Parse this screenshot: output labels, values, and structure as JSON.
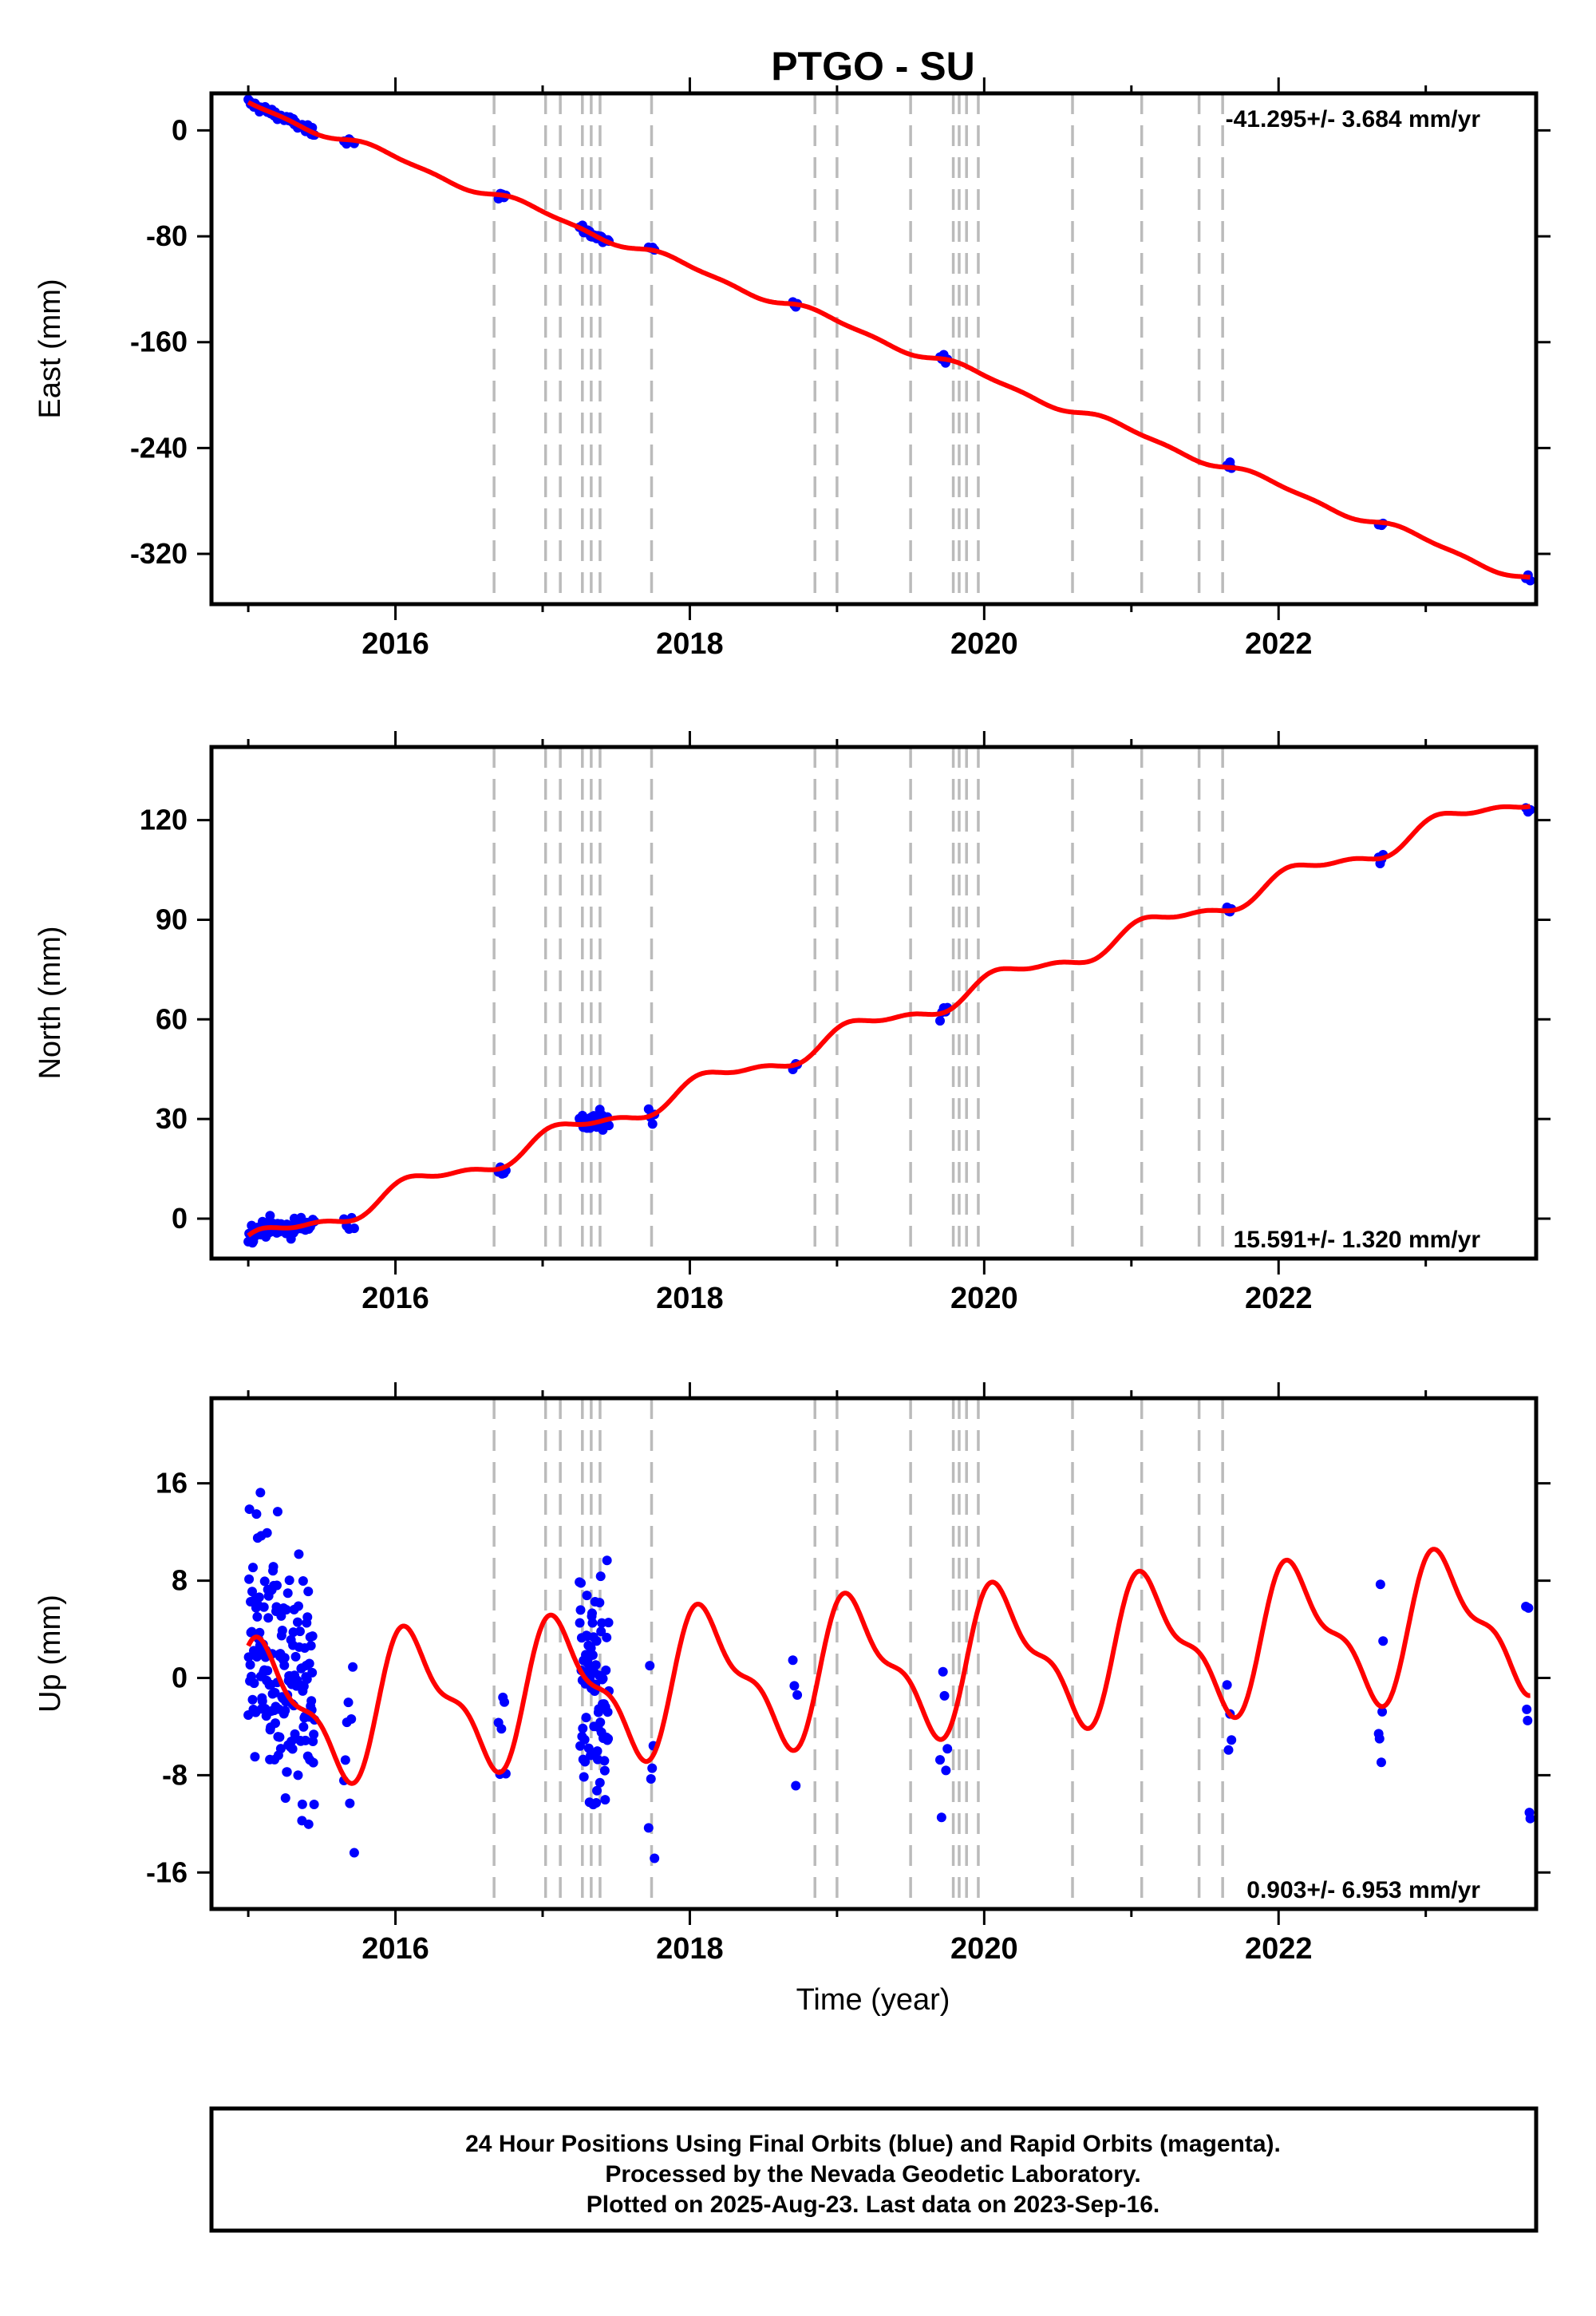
{
  "chart_data": {
    "type": "scatter",
    "title": "PTGO - SU",
    "xlabel": "Time (year)",
    "xlim": [
      2014.75,
      2023.75
    ],
    "xticks": [
      2016,
      2018,
      2020,
      2022
    ],
    "event_lines": [
      2016.67,
      2017.02,
      2017.12,
      2017.27,
      2017.33,
      2017.39,
      2017.74,
      2018.85,
      2019.0,
      2019.5,
      2019.79,
      2019.83,
      2019.88,
      2019.96,
      2020.6,
      2021.07,
      2021.46,
      2021.62
    ],
    "colors": {
      "final_orbits": "#0000ff",
      "rapid_orbits": "#ff00ff",
      "model": "#ff0000",
      "events": "#bbbbbb",
      "frame": "#000000"
    },
    "panels": [
      {
        "component": "east",
        "ylabel": "East (mm)",
        "ylim": [
          -358,
          28
        ],
        "yticks": [
          0,
          -80,
          -160,
          -240,
          -320
        ],
        "rate_text": "-41.295+/- 3.684 mm/yr",
        "rate_position": "top-right",
        "trend": {
          "t0": 2015.0,
          "y0": 20,
          "slope": -41.295
        },
        "seasonal": {
          "amp": 3,
          "phase": 0.35
        },
        "model_range": [
          2015.0,
          2023.71
        ],
        "segments": [
          [
            2015.0,
            2015.45,
            60
          ],
          [
            2015.65,
            2015.72,
            5
          ],
          [
            2016.7,
            2016.75,
            5
          ],
          [
            2017.25,
            2017.45,
            30
          ],
          [
            2017.72,
            2017.76,
            4
          ],
          [
            2018.7,
            2018.73,
            4
          ],
          [
            2019.7,
            2019.75,
            5
          ],
          [
            2021.65,
            2021.68,
            4
          ],
          [
            2022.68,
            2022.71,
            4
          ],
          [
            2023.68,
            2023.71,
            3
          ]
        ],
        "noise": 1.6
      },
      {
        "component": "north",
        "ylabel": "North (mm)",
        "ylim": [
          -12,
          142
        ],
        "yticks": [
          0,
          30,
          60,
          90,
          120
        ],
        "rate_text": "15.591+/- 1.320 mm/yr",
        "rate_position": "bottom-right",
        "trend": {
          "t0": 2015.0,
          "y0": -8,
          "slope": 15.591
        },
        "seasonal": {
          "amp": 3,
          "phase": 0.1
        },
        "model_range": [
          2015.0,
          2023.71
        ],
        "segments": [
          [
            2015.0,
            2015.45,
            80
          ],
          [
            2015.65,
            2015.72,
            5
          ],
          [
            2016.7,
            2016.75,
            5
          ],
          [
            2017.25,
            2017.45,
            40
          ],
          [
            2017.72,
            2017.76,
            4
          ],
          [
            2018.7,
            2018.73,
            4
          ],
          [
            2019.7,
            2019.75,
            5
          ],
          [
            2021.65,
            2021.68,
            4
          ],
          [
            2022.68,
            2022.71,
            4
          ],
          [
            2023.68,
            2023.71,
            3
          ]
        ],
        "noise": 1.3
      },
      {
        "component": "up",
        "ylabel": "Up (mm)",
        "ylim": [
          -19,
          23
        ],
        "yticks": [
          16,
          8,
          0,
          -8,
          -16
        ],
        "rate_text": "0.903+/- 6.953 mm/yr",
        "rate_position": "bottom-right",
        "trend": {
          "t0": 2015.0,
          "y0": -3,
          "slope": 0.903
        },
        "seasonal": {
          "amp": 5.2,
          "phase": 0.12
        },
        "model_range": [
          2015.0,
          2023.71
        ],
        "segments": [
          [
            2015.0,
            2015.45,
            170
          ],
          [
            2015.65,
            2015.72,
            8
          ],
          [
            2016.7,
            2016.75,
            6
          ],
          [
            2017.25,
            2017.45,
            80
          ],
          [
            2017.72,
            2017.76,
            6
          ],
          [
            2018.7,
            2018.73,
            4
          ],
          [
            2019.7,
            2019.75,
            6
          ],
          [
            2021.65,
            2021.68,
            4
          ],
          [
            2022.68,
            2022.71,
            6
          ],
          [
            2023.68,
            2023.71,
            6
          ]
        ],
        "noise": 5.2
      }
    ]
  },
  "footer": {
    "line1": "24 Hour Positions Using Final Orbits (blue) and Rapid Orbits (magenta).",
    "line2": "Processed by the Nevada Geodetic Laboratory.",
    "line3": "Plotted on 2025-Aug-23. Last data on 2023-Sep-16."
  }
}
